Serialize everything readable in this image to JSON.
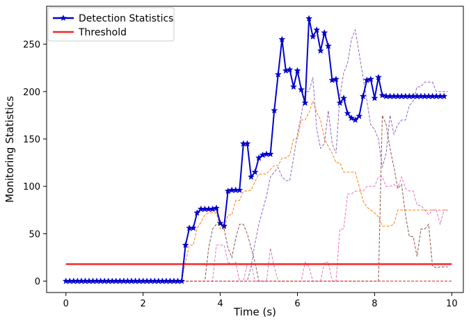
{
  "chart_data": {
    "type": "line",
    "title": "",
    "xlabel": "Time (s)",
    "ylabel": "Monitoring Statistics",
    "xlim": [
      -0.5,
      10.3
    ],
    "ylim": [
      -12,
      290
    ],
    "xticks": [
      0,
      2,
      4,
      6,
      8,
      10
    ],
    "yticks": [
      0,
      50,
      100,
      150,
      200,
      250
    ],
    "grid": false,
    "legend_placement": "top-left",
    "series": [
      {
        "name": "Detection Statistics",
        "style": "line-star",
        "color": "#0000cc",
        "x": [
          0.0,
          0.1,
          0.2,
          0.3,
          0.4,
          0.5,
          0.6,
          0.7,
          0.8,
          0.9,
          1.0,
          1.1,
          1.2,
          1.3,
          1.4,
          1.5,
          1.6,
          1.7,
          1.8,
          1.9,
          2.0,
          2.1,
          2.2,
          2.3,
          2.4,
          2.5,
          2.6,
          2.7,
          2.8,
          2.9,
          3.0,
          3.1,
          3.2,
          3.3,
          3.4,
          3.5,
          3.6,
          3.7,
          3.8,
          3.9,
          4.0,
          4.1,
          4.2,
          4.3,
          4.4,
          4.5,
          4.6,
          4.7,
          4.8,
          4.9,
          5.0,
          5.1,
          5.2,
          5.3,
          5.4,
          5.5,
          5.6,
          5.7,
          5.8,
          5.9,
          6.0,
          6.1,
          6.2,
          6.3,
          6.4,
          6.5,
          6.6,
          6.7,
          6.8,
          6.9,
          7.0,
          7.1,
          7.2,
          7.3,
          7.4,
          7.5,
          7.6,
          7.7,
          7.8,
          7.9,
          8.0,
          8.1,
          8.2,
          8.3,
          8.4,
          8.5,
          8.6,
          8.7,
          8.8,
          8.9,
          9.0,
          9.1,
          9.2,
          9.3,
          9.4,
          9.5,
          9.6,
          9.7,
          9.8
        ],
        "values": [
          0,
          0,
          0,
          0,
          0,
          0,
          0,
          0,
          0,
          0,
          0,
          0,
          0,
          0,
          0,
          0,
          0,
          0,
          0,
          0,
          0,
          0,
          0,
          0,
          0,
          0,
          0,
          0,
          0,
          0,
          0,
          38,
          56,
          56,
          72,
          76,
          76,
          76,
          76,
          77,
          61,
          58,
          95,
          96,
          96,
          96,
          145,
          145,
          110,
          115,
          130,
          133,
          134,
          134,
          180,
          218,
          255,
          222,
          223,
          205,
          222,
          202,
          188,
          277,
          258,
          265,
          243,
          262,
          248,
          212,
          213,
          188,
          193,
          177,
          172,
          170,
          174,
          195,
          212,
          213,
          193,
          215,
          196,
          195,
          195,
          195,
          195,
          195,
          195,
          195,
          195,
          195,
          195,
          195,
          195,
          195,
          195,
          195,
          195
        ]
      },
      {
        "name": "Threshold",
        "style": "line",
        "color": "#ff2020",
        "x": [
          0.0,
          10.0
        ],
        "values": [
          18,
          18
        ]
      },
      {
        "style": "dashed",
        "color": "#ff7f0e",
        "x": [
          3.0,
          3.1,
          3.2,
          3.3,
          3.4,
          3.5,
          3.6,
          3.7,
          3.8,
          3.9,
          4.0,
          4.1,
          4.2,
          4.3,
          4.4,
          4.5,
          4.6,
          4.7,
          4.8,
          4.9,
          5.0,
          5.1,
          5.2,
          5.3,
          5.4,
          5.5,
          5.6,
          5.7,
          5.8,
          5.9,
          6.0,
          6.1,
          6.2,
          6.3,
          6.4,
          6.5,
          6.6,
          6.7,
          6.8,
          6.9,
          7.0,
          7.1,
          7.2,
          7.3,
          7.4,
          7.5,
          7.6,
          7.7,
          7.8,
          7.9,
          8.0,
          8.1,
          8.2,
          8.3,
          8.4,
          8.5,
          8.6,
          8.7,
          8.8,
          8.9,
          9.0,
          9.1,
          9.2,
          9.3,
          9.4,
          9.5,
          9.6,
          9.7,
          9.8,
          9.9
        ],
        "values": [
          0,
          20,
          38,
          38,
          56,
          62,
          70,
          72,
          72,
          72,
          55,
          55,
          70,
          70,
          85,
          85,
          95,
          95,
          96,
          105,
          113,
          113,
          113,
          118,
          122,
          122,
          130,
          130,
          133,
          150,
          150,
          170,
          170,
          178,
          190,
          178,
          170,
          150,
          142,
          135,
          125,
          125,
          115,
          115,
          115,
          115,
          100,
          85,
          78,
          75,
          72,
          68,
          58,
          58,
          58,
          60,
          75,
          75,
          75,
          75,
          75,
          75,
          75,
          75,
          75,
          75,
          75,
          75,
          75,
          75
        ]
      },
      {
        "style": "dashed",
        "color": "#8c564b",
        "x": [
          3.0,
          3.1,
          3.2,
          3.3,
          3.4,
          3.5,
          3.6,
          3.7,
          3.8,
          3.9,
          4.0,
          4.1,
          4.2,
          4.3,
          4.4,
          4.5,
          4.6,
          4.7,
          4.8,
          4.9,
          5.0,
          5.1,
          5.2,
          5.3,
          5.4,
          5.5,
          5.6,
          5.7,
          5.8,
          5.9,
          6.0,
          6.1,
          6.2,
          6.3,
          6.4,
          6.5,
          6.6,
          6.7,
          6.8,
          6.9,
          7.0,
          7.1,
          7.2,
          7.3,
          7.4,
          7.5,
          7.6,
          7.7,
          7.8,
          7.9,
          8.0,
          8.1,
          8.2,
          8.3,
          8.4,
          8.5,
          8.6,
          8.7,
          8.8,
          8.9,
          9.0,
          9.1,
          9.2,
          9.3,
          9.4,
          9.5,
          9.6,
          9.7,
          9.8,
          9.9
        ],
        "values": [
          0,
          0,
          0,
          0,
          0,
          0,
          0,
          35,
          55,
          60,
          60,
          55,
          35,
          25,
          45,
          60,
          60,
          50,
          35,
          20,
          0,
          0,
          0,
          0,
          0,
          0,
          0,
          0,
          0,
          0,
          0,
          0,
          0,
          0,
          0,
          0,
          0,
          0,
          0,
          0,
          0,
          0,
          0,
          0,
          0,
          0,
          0,
          0,
          0,
          0,
          0,
          0,
          175,
          165,
          140,
          120,
          98,
          102,
          70,
          47,
          47,
          26,
          55,
          55,
          60,
          16,
          14,
          15,
          15,
          15
        ]
      },
      {
        "style": "dashed",
        "color": "#9467bd",
        "x": [
          3.0,
          3.1,
          3.2,
          3.3,
          3.4,
          3.5,
          3.6,
          3.7,
          3.8,
          3.9,
          4.0,
          4.1,
          4.2,
          4.3,
          4.4,
          4.5,
          4.6,
          4.7,
          4.8,
          4.9,
          5.0,
          5.1,
          5.2,
          5.3,
          5.4,
          5.5,
          5.6,
          5.7,
          5.8,
          5.9,
          6.0,
          6.1,
          6.2,
          6.3,
          6.4,
          6.5,
          6.6,
          6.7,
          6.8,
          6.9,
          7.0,
          7.1,
          7.2,
          7.3,
          7.4,
          7.5,
          7.6,
          7.7,
          7.8,
          7.9,
          8.0,
          8.1,
          8.2,
          8.3,
          8.4,
          8.5,
          8.6,
          8.7,
          8.8,
          8.9,
          9.0,
          9.1,
          9.2,
          9.3,
          9.4,
          9.5,
          9.6,
          9.7,
          9.8,
          9.9
        ],
        "values": [
          0,
          0,
          0,
          0,
          0,
          0,
          0,
          0,
          0,
          0,
          0,
          0,
          0,
          0,
          0,
          0,
          0,
          0,
          15,
          40,
          60,
          75,
          90,
          110,
          115,
          120,
          110,
          106,
          106,
          130,
          155,
          175,
          200,
          200,
          215,
          160,
          140,
          145,
          180,
          145,
          135,
          195,
          220,
          230,
          255,
          265,
          240,
          215,
          190,
          165,
          160,
          150,
          120,
          135,
          175,
          155,
          165,
          170,
          170,
          185,
          190,
          205,
          205,
          210,
          210,
          210,
          200,
          200,
          200,
          200
        ]
      },
      {
        "style": "dashed",
        "color": "#e377c2",
        "x": [
          3.0,
          3.1,
          3.2,
          3.3,
          3.4,
          3.5,
          3.6,
          3.7,
          3.8,
          3.9,
          4.0,
          4.1,
          4.2,
          4.3,
          4.4,
          4.5,
          4.6,
          4.7,
          4.8,
          4.9,
          5.0,
          5.1,
          5.2,
          5.3,
          5.4,
          5.5,
          5.6,
          5.7,
          5.8,
          5.9,
          6.0,
          6.1,
          6.2,
          6.3,
          6.4,
          6.5,
          6.6,
          6.7,
          6.8,
          6.9,
          7.0,
          7.1,
          7.2,
          7.3,
          7.4,
          7.5,
          7.6,
          7.7,
          7.8,
          7.9,
          8.0,
          8.1,
          8.2,
          8.3,
          8.4,
          8.5,
          8.6,
          8.7,
          8.8,
          8.9,
          9.0,
          9.1,
          9.2,
          9.3,
          9.4,
          9.5,
          9.6,
          9.7,
          9.8,
          9.9
        ],
        "values": [
          0,
          0,
          0,
          0,
          0,
          0,
          0,
          0,
          0,
          38,
          38,
          38,
          20,
          18,
          20,
          0,
          0,
          18,
          18,
          0,
          0,
          0,
          0,
          35,
          15,
          0,
          0,
          0,
          0,
          0,
          0,
          0,
          20,
          15,
          0,
          0,
          0,
          20,
          20,
          0,
          0,
          55,
          55,
          92,
          92,
          95,
          95,
          95,
          100,
          100,
          100,
          110,
          110,
          100,
          100,
          102,
          98,
          110,
          98,
          95,
          95,
          80,
          80,
          75,
          70,
          75,
          75,
          60,
          75,
          75
        ]
      },
      {
        "style": "dashed",
        "color": "#d62728",
        "x": [
          3.0,
          10.0
        ],
        "values": [
          0,
          0
        ]
      }
    ]
  }
}
